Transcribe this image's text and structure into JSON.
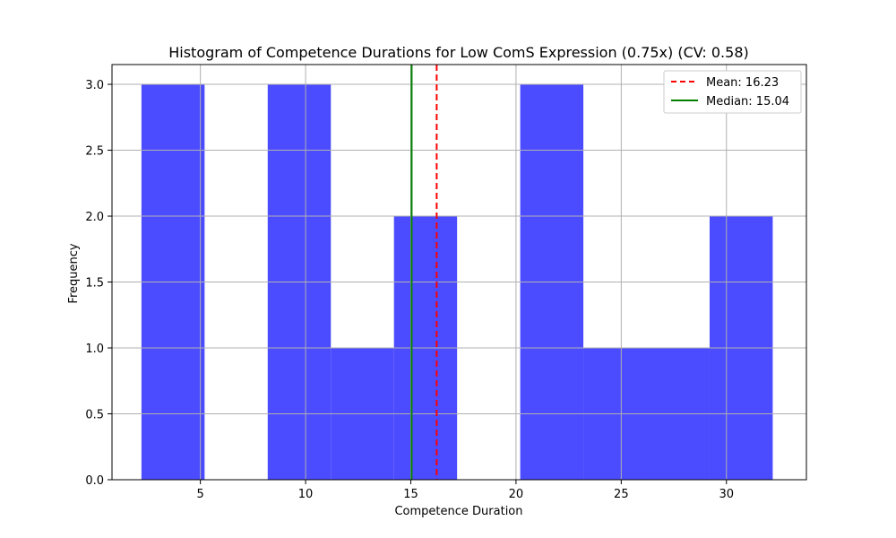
{
  "chart_data": {
    "type": "bar",
    "title": "Histogram of Competence Durations for Low ComS Expression (0.75x) (CV: 0.58)",
    "xlabel": "Competence Duration",
    "ylabel": "Frequency",
    "xlim": [
      0.8,
      33.8
    ],
    "ylim": [
      0,
      3.15
    ],
    "xticks": [
      5,
      10,
      15,
      20,
      25,
      30
    ],
    "xtick_labels": [
      "5",
      "10",
      "15",
      "20",
      "25",
      "30"
    ],
    "yticks": [
      0,
      0.5,
      1.0,
      1.5,
      2.0,
      2.5,
      3.0
    ],
    "ytick_labels": [
      "0.0",
      "0.5",
      "1.0",
      "1.5",
      "2.0",
      "2.5",
      "3.0"
    ],
    "grid": true,
    "legend_position": "top-right",
    "bins": [
      {
        "x0": 2.2,
        "x1": 5.2,
        "count": 3
      },
      {
        "x0": 5.2,
        "x1": 8.2,
        "count": 0
      },
      {
        "x0": 8.2,
        "x1": 11.2,
        "count": 3
      },
      {
        "x0": 11.2,
        "x1": 14.2,
        "count": 1
      },
      {
        "x0": 14.2,
        "x1": 17.2,
        "count": 2
      },
      {
        "x0": 17.2,
        "x1": 20.2,
        "count": 0
      },
      {
        "x0": 20.2,
        "x1": 23.2,
        "count": 3
      },
      {
        "x0": 23.2,
        "x1": 26.2,
        "count": 1
      },
      {
        "x0": 26.2,
        "x1": 29.2,
        "count": 1
      },
      {
        "x0": 29.2,
        "x1": 32.2,
        "count": 2
      }
    ],
    "bar_color": "#4b4bff",
    "lines": [
      {
        "kind": "mean",
        "value": 16.23,
        "label": "Mean: 16.23",
        "color": "#ff0000",
        "style": "dashed"
      },
      {
        "kind": "median",
        "value": 15.04,
        "label": "Median: 15.04",
        "color": "#008000",
        "style": "solid"
      }
    ]
  }
}
